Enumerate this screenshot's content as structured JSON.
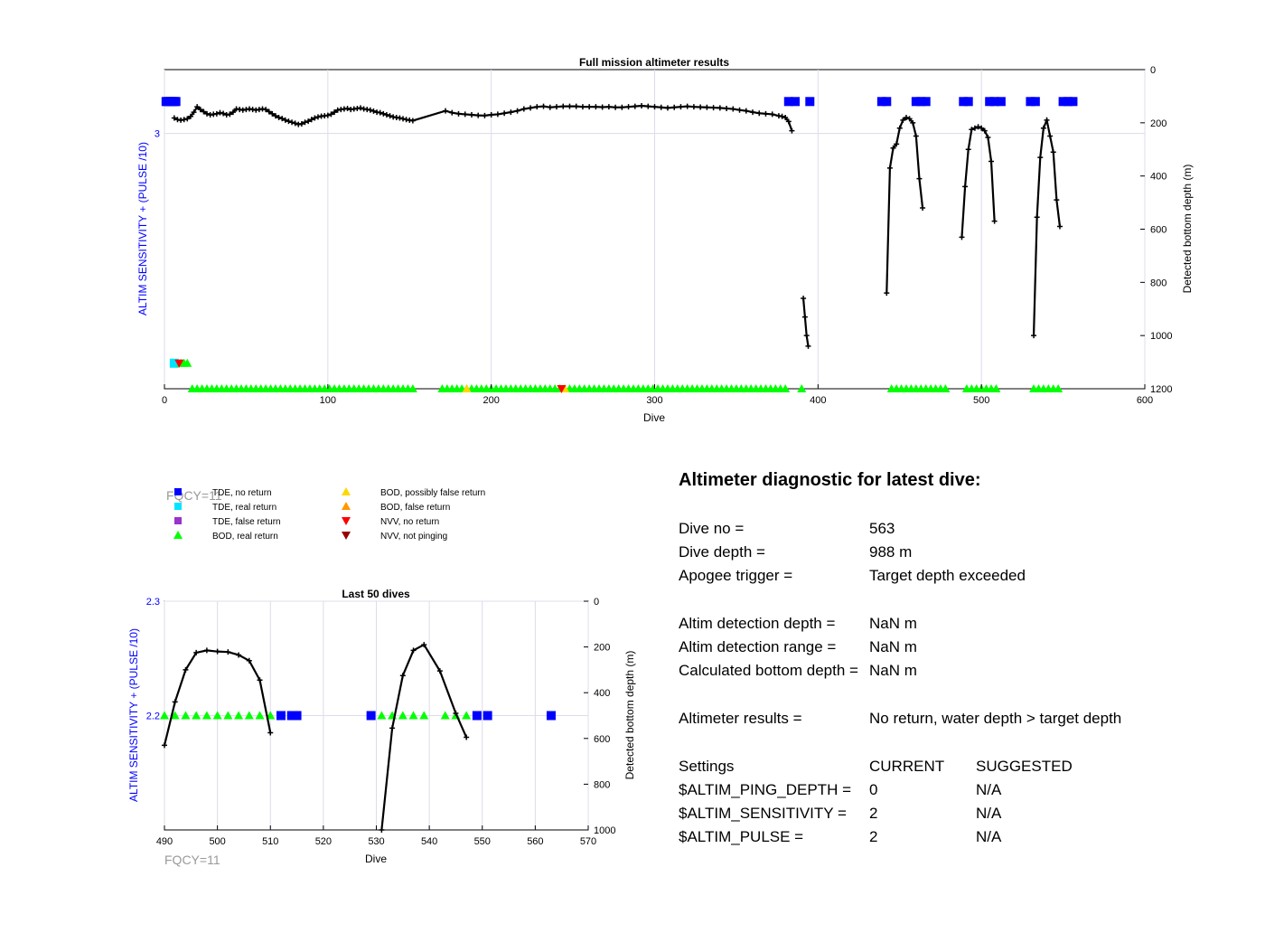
{
  "colors": {
    "left_axis": "#0000ff",
    "tde_no_return": "#0000ff",
    "tde_real_return": "#00e5ff",
    "tde_false_return": "#9933cc",
    "bod_real_return": "#00ff00",
    "bod_possibly_false": "#ffd700",
    "bod_false": "#ff9900",
    "nvv_no_return": "#ff0000",
    "nvv_not_pinging": "#990000",
    "depth_line": "#000000",
    "grid": "#dcdcec",
    "fqcy_text": "#999999"
  },
  "chart_data": [
    {
      "type": "scatter",
      "title": "Full mission altimeter results",
      "xlabel": "Dive",
      "ylabel": "ALTIM SENSITIVITY + (PULSE /10)",
      "ylabel_right": "Detected bottom depth (m)",
      "xlim": [
        0,
        600
      ],
      "xticks": [
        "0",
        "100",
        "200",
        "300",
        "400",
        "500",
        "600"
      ],
      "ylim_left": [
        2.2,
        3.2
      ],
      "yticks_left": [
        "3"
      ],
      "ylim_right": [
        0,
        1200
      ],
      "yticks_right": [
        "0",
        "200",
        "400",
        "600",
        "800",
        "1000",
        "1200"
      ],
      "grid": true,
      "series": [
        {
          "name": "TDE, no return",
          "at_left": 3.1,
          "x": [
            1,
            2,
            3,
            4,
            5,
            6,
            7,
            382,
            386,
            395,
            439,
            442,
            460,
            463,
            466,
            489,
            492,
            505,
            508,
            512,
            530,
            533,
            550,
            553,
            556
          ]
        },
        {
          "name": "TDE, real return",
          "at_left": 2.28,
          "x": [
            6
          ]
        },
        {
          "name": "BOD, real return",
          "at_left": 2.28,
          "x": [
            10,
            12,
            14
          ]
        },
        {
          "name": "NVV, no return",
          "at_left": 2.28,
          "x": [
            9
          ]
        },
        {
          "name": "BOD, real return",
          "at_left": 2.2,
          "from": 17,
          "to": 380,
          "gaps": [
            [
              152,
              170
            ]
          ]
        },
        {
          "name": "BOD, possibly false return",
          "at_left": 2.2,
          "x": [
            185,
            245
          ]
        },
        {
          "name": "NVV, no return",
          "at_left": 2.2,
          "x": [
            243
          ]
        },
        {
          "name": "BOD, real return",
          "at_left": 2.2,
          "x": [
            390,
            445,
            448,
            451,
            454,
            457,
            460,
            463,
            466,
            469,
            472,
            475,
            478,
            491,
            494,
            497,
            500,
            503,
            506,
            509,
            532,
            535,
            538,
            541,
            544,
            547
          ]
        },
        {
          "name": "Detected bottom depth",
          "axis": "right",
          "segments": [
            {
              "x": [
                6,
                8,
                10,
                12,
                14,
                16,
                18,
                20,
                22,
                24,
                26,
                28,
                30,
                32,
                34,
                36,
                38,
                40,
                42,
                44,
                46,
                48,
                50,
                52,
                54,
                56,
                58,
                60,
                62,
                64,
                66,
                68,
                70,
                72,
                74,
                76,
                78,
                80,
                82,
                84,
                86,
                88,
                90,
                92,
                94,
                96,
                98,
                100,
                102,
                104,
                106,
                108,
                110,
                112,
                114,
                116,
                118,
                120,
                122,
                124,
                126,
                128,
                130,
                132,
                134,
                136,
                138,
                140,
                142,
                144,
                146,
                148,
                150,
                152,
                172,
                176,
                180,
                184,
                188,
                192,
                196,
                200,
                204,
                208,
                212,
                216,
                220,
                224,
                228,
                232,
                236,
                240,
                244,
                248,
                252,
                256,
                260,
                264,
                268,
                272,
                276,
                280,
                284,
                288,
                292,
                296,
                300,
                304,
                308,
                312,
                316,
                320,
                324,
                328,
                332,
                336,
                340,
                344,
                348,
                352,
                356,
                360,
                364,
                368,
                372,
                376,
                378,
                380,
                382,
                384
              ],
              "y": [
                182,
                188,
                190,
                188,
                185,
                176,
                160,
                140,
                150,
                158,
                166,
                170,
                168,
                166,
                162,
                165,
                170,
                168,
                160,
                148,
                150,
                152,
                150,
                148,
                150,
                152,
                150,
                148,
                150,
                158,
                166,
                174,
                180,
                184,
                190,
                194,
                198,
                202,
                206,
                204,
                198,
                194,
                188,
                182,
                178,
                175,
                174,
                172,
                168,
                160,
                152,
                150,
                148,
                146,
                150,
                148,
                146,
                144,
                148,
                150,
                152,
                156,
                160,
                162,
                166,
                170,
                174,
                178,
                180,
                182,
                185,
                188,
                190,
                192,
                155,
                162,
                166,
                168,
                170,
                172,
                173,
                170,
                168,
                164,
                160,
                155,
                148,
                144,
                140,
                138,
                142,
                140,
                138,
                138,
                138,
                140,
                140,
                140,
                141,
                140,
                142,
                142,
                140,
                138,
                136,
                138,
                140,
                142,
                144,
                142,
                140,
                138,
                140,
                141,
                142,
                143,
                144,
                146,
                148,
                152,
                155,
                160,
                164,
                166,
                168,
                174,
                176,
                180,
                195,
                230
              ]
            },
            {
              "x": [
                391,
                392,
                393,
                394
              ],
              "y": [
                860,
                930,
                1000,
                1040
              ]
            },
            {
              "x": [
                442,
                444,
                446,
                448,
                450,
                452,
                454,
                456,
                458,
                460,
                462,
                464
              ],
              "y": [
                840,
                370,
                295,
                280,
                220,
                190,
                180,
                185,
                200,
                250,
                410,
                520
              ]
            },
            {
              "x": [
                488,
                490,
                492,
                494,
                496,
                498,
                500,
                502,
                504,
                506,
                508
              ],
              "y": [
                630,
                440,
                300,
                225,
                220,
                215,
                220,
                230,
                255,
                345,
                570
              ]
            },
            {
              "x": [
                532,
                534,
                536,
                538,
                540,
                542,
                544,
                546,
                548
              ],
              "y": [
                1000,
                555,
                330,
                220,
                190,
                250,
                310,
                490,
                590
              ]
            }
          ]
        }
      ]
    },
    {
      "type": "scatter",
      "title": "Last 50 dives",
      "xlabel": "Dive",
      "ylabel": "ALTIM SENSITIVITY + (PULSE /10)",
      "ylabel_right": "Detected bottom depth (m)",
      "xlim": [
        490,
        570
      ],
      "xticks": [
        "490",
        "500",
        "510",
        "520",
        "530",
        "540",
        "550",
        "560",
        "570"
      ],
      "ylim_left": [
        2.1,
        2.3
      ],
      "yticks_left": [
        "2.2",
        "2.3"
      ],
      "ylim_right": [
        0,
        1000
      ],
      "yticks_right": [
        "0",
        "200",
        "400",
        "600",
        "800",
        "1000"
      ],
      "grid": true,
      "series": [
        {
          "name": "BOD, real return",
          "at_left": 2.2,
          "x": [
            490,
            492,
            494,
            496,
            498,
            500,
            502,
            504,
            506,
            508,
            510,
            531,
            533,
            535,
            537,
            539,
            543,
            545,
            547
          ]
        },
        {
          "name": "TDE, no return",
          "at_left": 2.2,
          "x": [
            512,
            514,
            515,
            529,
            549,
            551,
            563
          ]
        },
        {
          "name": "Detected bottom depth",
          "axis": "right",
          "segments": [
            {
              "x": [
                490,
                492,
                494,
                496,
                498,
                500,
                502,
                504,
                506,
                508,
                510
              ],
              "y": [
                630,
                440,
                300,
                225,
                215,
                220,
                222,
                235,
                260,
                345,
                575
              ]
            },
            {
              "x": [
                531,
                533,
                535,
                537,
                539,
                542,
                545,
                547
              ],
              "y": [
                1000,
                555,
                325,
                215,
                190,
                305,
                490,
                595
              ]
            }
          ]
        }
      ]
    }
  ],
  "annotations": {
    "fqcy_top": "FQCY=11",
    "fqcy_bottom": "FQCY=11"
  },
  "legend": {
    "items": [
      {
        "label": "TDE, no return",
        "marker": "square",
        "color_key": "tde_no_return"
      },
      {
        "label": "TDE, real return",
        "marker": "square",
        "color_key": "tde_real_return"
      },
      {
        "label": "TDE, false return",
        "marker": "square",
        "color_key": "tde_false_return"
      },
      {
        "label": "BOD, real return",
        "marker": "triangle-up",
        "color_key": "bod_real_return"
      },
      {
        "label": "BOD, possibly false return",
        "marker": "triangle-up",
        "color_key": "bod_possibly_false"
      },
      {
        "label": "BOD, false return",
        "marker": "triangle-up",
        "color_key": "bod_false"
      },
      {
        "label": "NVV, no return",
        "marker": "triangle-down",
        "color_key": "nvv_no_return"
      },
      {
        "label": "NVV, not pinging",
        "marker": "triangle-down",
        "color_key": "nvv_not_pinging"
      }
    ]
  },
  "diagnostic": {
    "title": "Altimeter diagnostic for latest dive:",
    "dive_no_label": "Dive no =",
    "dive_no_value": "563",
    "dive_depth_label": "Dive depth =",
    "dive_depth_value": "988 m",
    "apogee_label": "Apogee trigger =",
    "apogee_value": "Target depth exceeded",
    "detection_depth_label": "Altim detection depth =",
    "detection_depth_value": "NaN m",
    "detection_range_label": "Altim detection range =",
    "detection_range_value": "NaN m",
    "bottom_depth_label": "Calculated bottom depth =",
    "bottom_depth_value": "NaN m",
    "results_label": "Altimeter results =",
    "results_value": "No return, water depth > target depth",
    "settings_header": "Settings",
    "current_header": "CURRENT",
    "suggested_header": "SUGGESTED",
    "settings": [
      {
        "name": "$ALTIM_PING_DEPTH =",
        "current": "0",
        "suggested": "N/A"
      },
      {
        "name": "$ALTIM_SENSITIVITY =",
        "current": "2",
        "suggested": "N/A"
      },
      {
        "name": "$ALTIM_PULSE =",
        "current": "2",
        "suggested": "N/A"
      }
    ]
  }
}
